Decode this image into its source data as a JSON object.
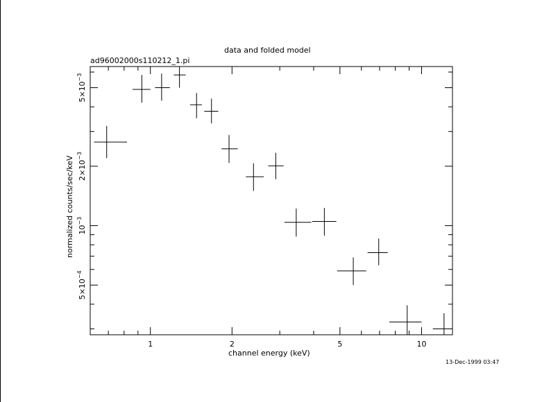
{
  "chart_data": {
    "type": "scatter",
    "title": "data and folded model",
    "subtitle": "ad96002000s110212_1.pi",
    "xlabel": "channel energy (keV)",
    "ylabel": "normalized counts/sec/keV",
    "x_scale": "log",
    "y_scale": "log",
    "xlim": [
      0.6,
      13.0
    ],
    "ylim": [
      0.00028,
      0.0064
    ],
    "x_ticks": [
      {
        "value": 1,
        "label": "1"
      },
      {
        "value": 2,
        "label": "2"
      },
      {
        "value": 5,
        "label": "5"
      },
      {
        "value": 10,
        "label": "10"
      }
    ],
    "y_ticks": [
      {
        "value": 0.0005,
        "mant": "5×10",
        "exp": "−4"
      },
      {
        "value": 0.001,
        "mant": "10",
        "exp": "−3"
      },
      {
        "value": 0.002,
        "mant": "2×10",
        "exp": "−3"
      },
      {
        "value": 0.005,
        "mant": "5×10",
        "exp": "−3"
      }
    ],
    "series": [
      {
        "points": [
          {
            "x": 0.69,
            "xlo": 0.62,
            "xhi": 0.82,
            "y": 0.00265,
            "ylo": 0.0022,
            "yhi": 0.0032
          },
          {
            "x": 0.93,
            "xlo": 0.86,
            "xhi": 1.0,
            "y": 0.0049,
            "ylo": 0.0042,
            "yhi": 0.0058
          },
          {
            "x": 1.1,
            "xlo": 1.04,
            "xhi": 1.18,
            "y": 0.005,
            "ylo": 0.0043,
            "yhi": 0.0059
          },
          {
            "x": 1.28,
            "xlo": 1.22,
            "xhi": 1.35,
            "y": 0.0058,
            "ylo": 0.005,
            "yhi": 0.0065
          },
          {
            "x": 1.48,
            "xlo": 1.4,
            "xhi": 1.55,
            "y": 0.0041,
            "ylo": 0.0035,
            "yhi": 0.0047
          },
          {
            "x": 1.68,
            "xlo": 1.58,
            "xhi": 1.78,
            "y": 0.0038,
            "ylo": 0.0033,
            "yhi": 0.0044
          },
          {
            "x": 1.95,
            "xlo": 1.83,
            "xhi": 2.1,
            "y": 0.00245,
            "ylo": 0.00208,
            "yhi": 0.00288
          },
          {
            "x": 2.4,
            "xlo": 2.25,
            "xhi": 2.62,
            "y": 0.00177,
            "ylo": 0.0015,
            "yhi": 0.00207
          },
          {
            "x": 2.9,
            "xlo": 2.72,
            "xhi": 3.1,
            "y": 0.00201,
            "ylo": 0.00172,
            "yhi": 0.00234
          },
          {
            "x": 3.45,
            "xlo": 3.12,
            "xhi": 3.92,
            "y": 0.00104,
            "ylo": 0.00088,
            "yhi": 0.00122
          },
          {
            "x": 4.38,
            "xlo": 3.95,
            "xhi": 4.85,
            "y": 0.00105,
            "ylo": 0.00089,
            "yhi": 0.00123
          },
          {
            "x": 5.6,
            "xlo": 4.88,
            "xhi": 6.25,
            "y": 0.00059,
            "ylo": 0.0005,
            "yhi": 0.00069
          },
          {
            "x": 6.95,
            "xlo": 6.32,
            "xhi": 7.5,
            "y": 0.00073,
            "ylo": 0.00063,
            "yhi": 0.00086
          },
          {
            "x": 8.85,
            "xlo": 7.6,
            "xhi": 10.0,
            "y": 0.000325,
            "ylo": 0.00027,
            "yhi": 0.000395
          },
          {
            "x": 12.1,
            "xlo": 11.0,
            "xhi": 13.0,
            "y": 0.0003,
            "ylo": 0.00025,
            "yhi": 0.00036
          }
        ]
      }
    ],
    "grid": false,
    "legend": "none"
  },
  "footer": {
    "timestamp": "13-Dec-1999 03:47"
  }
}
